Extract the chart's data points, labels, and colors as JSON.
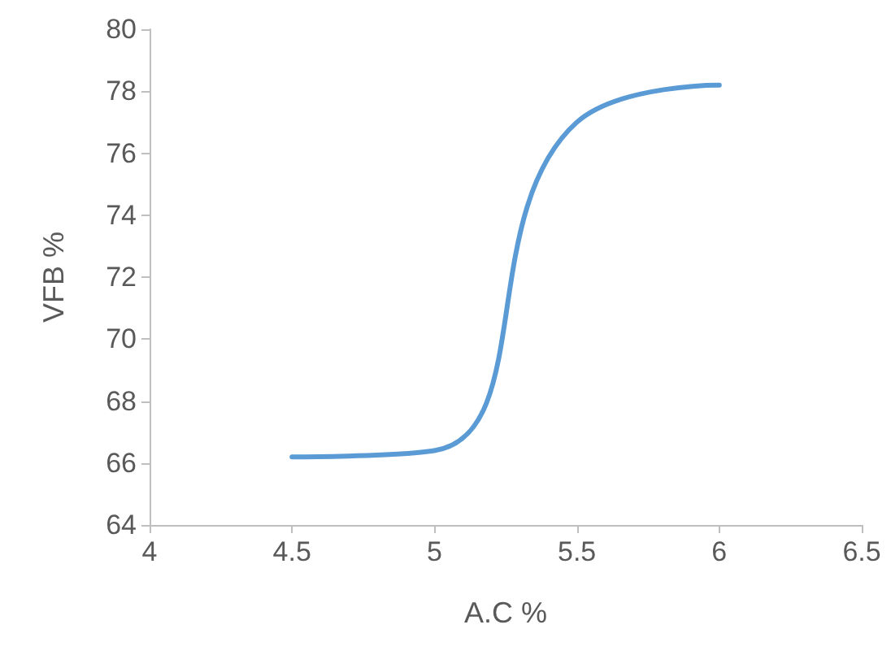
{
  "chart_data": {
    "type": "line",
    "xlabel": "A.C %",
    "ylabel": "VFB %",
    "x": [
      4.5,
      5,
      5.5,
      6
    ],
    "series": [
      {
        "color": "#5b9bd5",
        "values": [
          66.2,
          66.4,
          77.0,
          78.2
        ]
      }
    ],
    "xlim": [
      4,
      6.5
    ],
    "xticks": [
      4,
      4.5,
      5,
      5.5,
      6,
      6.5
    ],
    "ylim": [
      64,
      80
    ],
    "yticks": [
      64,
      66,
      68,
      70,
      72,
      74,
      76,
      78,
      80
    ],
    "grid": false,
    "marker": "none",
    "line_style": "solid"
  }
}
